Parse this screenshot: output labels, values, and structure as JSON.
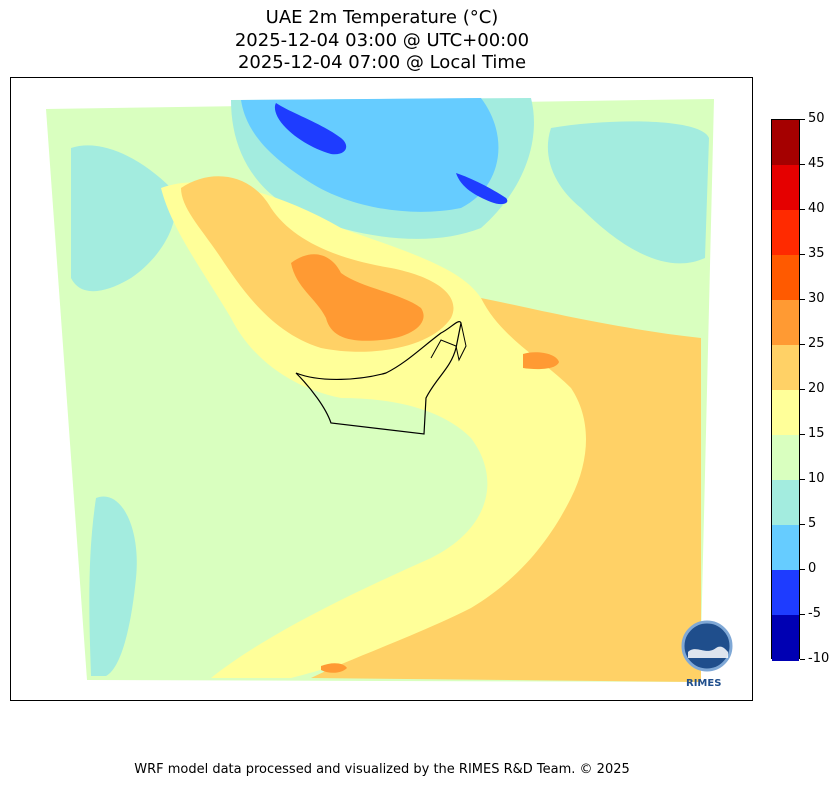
{
  "header": {
    "title_line1": "UAE 2m Temperature (°C)",
    "title_line2": "2025-12-04 03:00 @ UTC+00:00",
    "title_line3": "2025-12-04 07:00 @ Local Time"
  },
  "colorbar": {
    "ticks": [
      "50",
      "45",
      "40",
      "35",
      "30",
      "25",
      "20",
      "15",
      "10",
      "5",
      "0",
      "-5",
      "-10"
    ],
    "colors": [
      "#a50000",
      "#e50000",
      "#ff2a00",
      "#ff5a00",
      "#ff9a33",
      "#ffd166",
      "#ffff99",
      "#d9ffbf",
      "#a3ecdf",
      "#66ccff",
      "#1e3cff",
      "#0000b3"
    ]
  },
  "map": {
    "colors": {
      "cool_15": "#d9ffbf",
      "cool_10": "#a3ecdf",
      "cold_5": "#66ccff",
      "cold_0": "#1e3cff",
      "warm_20": "#ffff99",
      "warm_25": "#ffd166",
      "hot_30": "#ff9a33"
    }
  },
  "logo": {
    "text": "RIMES"
  },
  "footer": {
    "credit": "WRF model data processed and visualized by the RIMES R&D Team. © 2025"
  }
}
